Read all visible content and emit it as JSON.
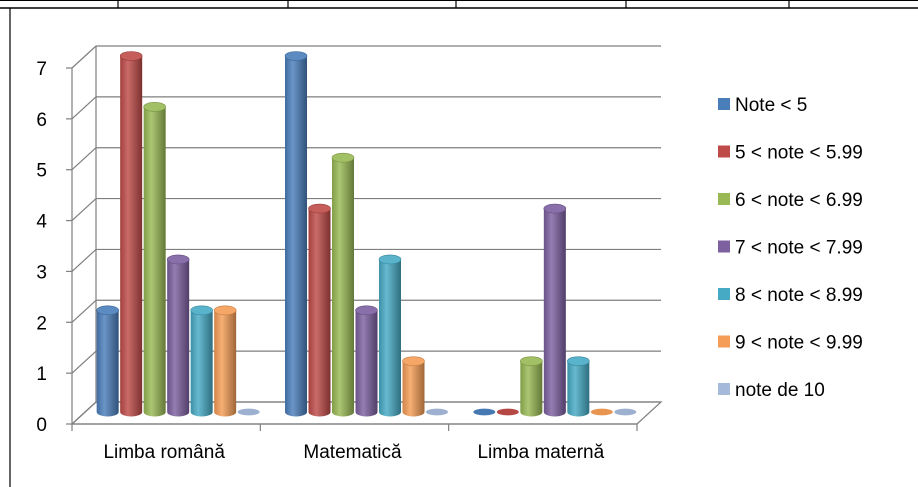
{
  "chart_data": {
    "type": "bar",
    "title": "",
    "xlabel": "",
    "ylabel": "",
    "categories": [
      "Limba română",
      "Matematică",
      "Limba maternă"
    ],
    "ylim": [
      0,
      7
    ],
    "yticks": [
      "0",
      "1",
      "2",
      "3",
      "4",
      "5",
      "6",
      "7"
    ],
    "grid": true,
    "legend_position": "right",
    "series": [
      {
        "name": "Note < 5",
        "color": "#4A7EBB",
        "values": [
          2,
          7,
          0
        ]
      },
      {
        "name": " 5 < note < 5.99",
        "color": "#BE4B48",
        "values": [
          7,
          4,
          0
        ]
      },
      {
        "name": "6 < note < 6.99",
        "color": "#98B954",
        "values": [
          6,
          5,
          1
        ]
      },
      {
        "name": "7 < note < 7.99",
        "color": "#7D60A0",
        "values": [
          3,
          2,
          4
        ]
      },
      {
        "name": "8 < note < 8.99",
        "color": "#46AAC5",
        "values": [
          2,
          3,
          1
        ]
      },
      {
        "name": "9 < note < 9.99",
        "color": "#F59D56",
        "values": [
          2,
          1,
          0
        ]
      },
      {
        "name": "note de 10",
        "color": "#A5B9DB",
        "values": [
          0,
          0,
          0
        ]
      }
    ]
  }
}
